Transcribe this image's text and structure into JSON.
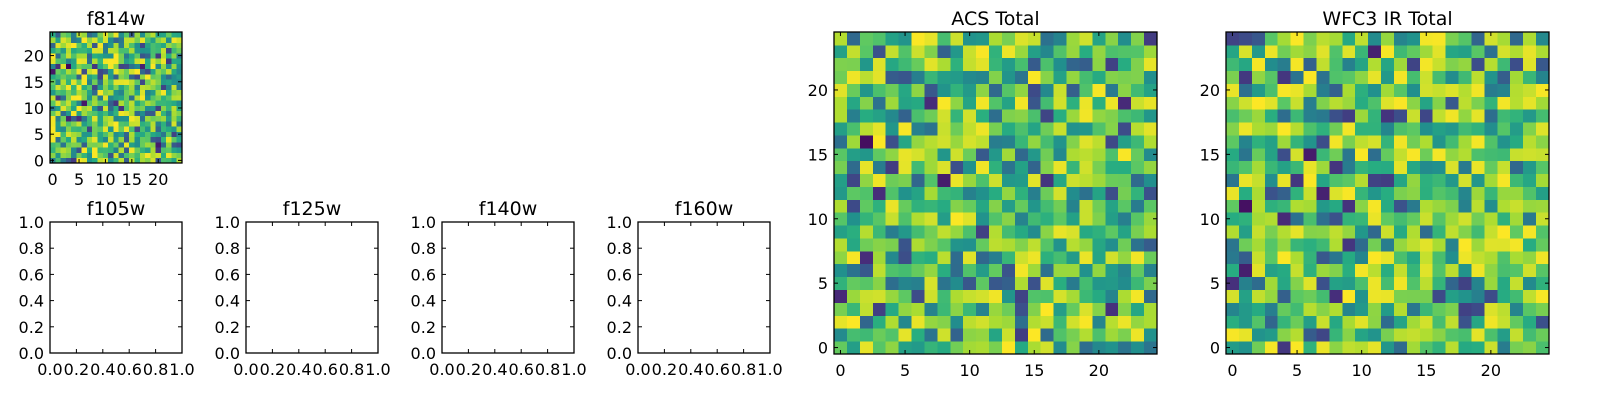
{
  "chart_data": [
    {
      "type": "heatmap",
      "id": "f814w",
      "title": "f814w",
      "image": true,
      "seed": 814,
      "shape": [
        25,
        25
      ],
      "xlim": [
        -0.5,
        24.5
      ],
      "ylim": [
        -0.5,
        24.5
      ],
      "xticks": [
        0,
        5,
        10,
        15,
        20
      ],
      "xtick_labels": [
        "0",
        "5",
        "10",
        "15",
        "20"
      ],
      "yticks": [
        0,
        5,
        10,
        15,
        20
      ],
      "ytick_labels": [
        "0",
        "5",
        "10",
        "15",
        "20"
      ],
      "colormap": "viridis"
    },
    {
      "type": "heatmap",
      "id": "f105w",
      "title": "f105w",
      "image": false,
      "xlim": [
        0,
        1
      ],
      "ylim": [
        0,
        1
      ],
      "xticks": [
        0,
        0.2,
        0.4,
        0.6,
        0.8,
        1.0
      ],
      "xtick_labels": [
        "0.0",
        "0.2",
        "0.4",
        "0.6",
        "0.8",
        "1.0"
      ],
      "yticks": [
        0,
        0.2,
        0.4,
        0.6,
        0.8,
        1.0
      ],
      "ytick_labels": [
        "0.0",
        "0.2",
        "0.4",
        "0.6",
        "0.8",
        "1.0"
      ]
    },
    {
      "type": "heatmap",
      "id": "f125w",
      "title": "f125w",
      "image": false,
      "xlim": [
        0,
        1
      ],
      "ylim": [
        0,
        1
      ],
      "xticks": [
        0,
        0.2,
        0.4,
        0.6,
        0.8,
        1.0
      ],
      "xtick_labels": [
        "0.0",
        "0.2",
        "0.4",
        "0.6",
        "0.8",
        "1.0"
      ],
      "yticks": [
        0,
        0.2,
        0.4,
        0.6,
        0.8,
        1.0
      ],
      "ytick_labels": [
        "0.0",
        "0.2",
        "0.4",
        "0.6",
        "0.8",
        "1.0"
      ]
    },
    {
      "type": "heatmap",
      "id": "f140w",
      "title": "f140w",
      "image": false,
      "xlim": [
        0,
        1
      ],
      "ylim": [
        0,
        1
      ],
      "xticks": [
        0,
        0.2,
        0.4,
        0.6,
        0.8,
        1.0
      ],
      "xtick_labels": [
        "0.0",
        "0.2",
        "0.4",
        "0.6",
        "0.8",
        "1.0"
      ],
      "yticks": [
        0,
        0.2,
        0.4,
        0.6,
        0.8,
        1.0
      ],
      "ytick_labels": [
        "0.0",
        "0.2",
        "0.4",
        "0.6",
        "0.8",
        "1.0"
      ]
    },
    {
      "type": "heatmap",
      "id": "f160w",
      "title": "f160w",
      "image": false,
      "xlim": [
        0,
        1
      ],
      "ylim": [
        0,
        1
      ],
      "xticks": [
        0,
        0.2,
        0.4,
        0.6,
        0.8,
        1.0
      ],
      "xtick_labels": [
        "0.0",
        "0.2",
        "0.4",
        "0.6",
        "0.8",
        "1.0"
      ],
      "yticks": [
        0,
        0.2,
        0.4,
        0.6,
        0.8,
        1.0
      ],
      "ytick_labels": [
        "0.0",
        "0.2",
        "0.4",
        "0.6",
        "0.8",
        "1.0"
      ]
    },
    {
      "type": "heatmap",
      "id": "acs-total",
      "title": "ACS Total",
      "image": true,
      "seed": 4242,
      "shape": [
        25,
        25
      ],
      "xlim": [
        -0.5,
        24.5
      ],
      "ylim": [
        -0.5,
        24.5
      ],
      "xticks": [
        0,
        5,
        10,
        15,
        20
      ],
      "xtick_labels": [
        "0",
        "5",
        "10",
        "15",
        "20"
      ],
      "yticks": [
        0,
        5,
        10,
        15,
        20
      ],
      "ytick_labels": [
        "0",
        "5",
        "10",
        "15",
        "20"
      ],
      "colormap": "viridis"
    },
    {
      "type": "heatmap",
      "id": "wfc3-ir-total",
      "title": "WFC3 IR Total",
      "image": true,
      "seed": 3333,
      "shape": [
        25,
        25
      ],
      "xlim": [
        -0.5,
        24.5
      ],
      "ylim": [
        -0.5,
        24.5
      ],
      "xticks": [
        0,
        5,
        10,
        15,
        20
      ],
      "xtick_labels": [
        "0",
        "5",
        "10",
        "15",
        "20"
      ],
      "yticks": [
        0,
        5,
        10,
        15,
        20
      ],
      "ytick_labels": [
        "0",
        "5",
        "10",
        "15",
        "20"
      ],
      "colormap": "viridis"
    }
  ]
}
